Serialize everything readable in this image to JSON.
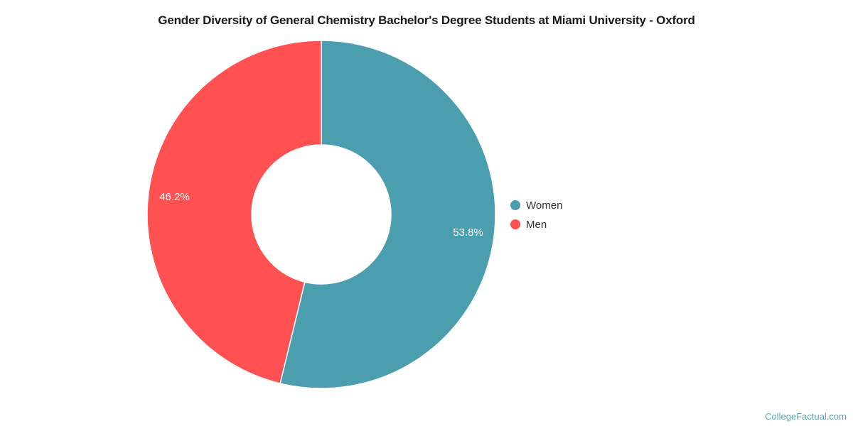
{
  "header": {
    "title": "Gender Diversity of General Chemistry Bachelor's Degree Students at Miami University - Oxford"
  },
  "chart_data": {
    "type": "pie",
    "subtype": "donut",
    "title": "Gender Diversity of General Chemistry Bachelor's Degree Students at Miami University - Oxford",
    "units": "percent",
    "start_angle_deg": 0,
    "direction": "clockwise",
    "inner_radius_ratio": 0.4,
    "legend_position": "right",
    "data_label_color": "#ffffff",
    "slice_border_color": "#ffffff",
    "series": [
      {
        "name": "Women",
        "value": 53.8,
        "label": "53.8%",
        "color": "#4A9EAE"
      },
      {
        "name": "Men",
        "value": 46.2,
        "label": "46.2%",
        "color": "#FF5152"
      }
    ]
  },
  "watermark": {
    "text": "CollegeFactual.com",
    "color": "#58A7B3"
  }
}
